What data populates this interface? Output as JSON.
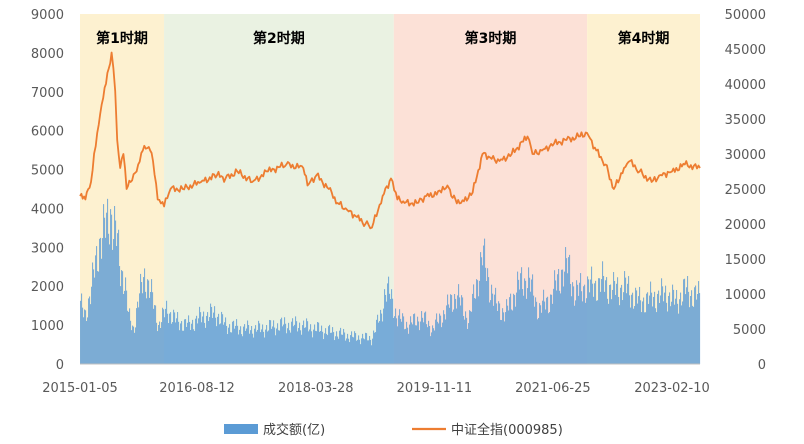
{
  "chart_data": {
    "type": "bar+line",
    "periods": [
      {
        "label": "第1时期",
        "start": "2015-01-05",
        "end": "2016-02-29",
        "color": "#fdefc8"
      },
      {
        "label": "第2时期",
        "start": "2016-02-29",
        "end": "2019-04-22",
        "color": "#e6f0dd"
      },
      {
        "label": "第3时期",
        "start": "2019-04-22",
        "end": "2021-12-13",
        "color": "#fbdcd0"
      },
      {
        "label": "第4时期",
        "start": "2021-12-13",
        "end": "2023-06-30",
        "color": "#fdefc8"
      }
    ],
    "x_ticks": [
      "2015-01-05",
      "2016-08-12",
      "2018-03-28",
      "2019-11-11",
      "2021-06-25",
      "2023-02-10"
    ],
    "x_range": [
      "2015-01-05",
      "2023-06-30"
    ],
    "y_left_ticks": [
      "0",
      "1000",
      "2000",
      "3000",
      "4000",
      "5000",
      "6000",
      "7000",
      "8000",
      "9000"
    ],
    "y_left_range": [
      0,
      9000
    ],
    "y_right_ticks": [
      "0",
      "5000",
      "10000",
      "15000",
      "20000",
      "25000",
      "30000",
      "35000",
      "40000",
      "45000",
      "50000"
    ],
    "y_right_range": [
      0,
      50000
    ],
    "series": [
      {
        "name": "成交额(亿)",
        "kind": "bar",
        "axis": "left",
        "color": "#5b9bd5",
        "points": [
          [
            "2015-01-05",
            1500
          ],
          [
            "2015-02-01",
            1300
          ],
          [
            "2015-03-01",
            1800
          ],
          [
            "2015-03-20",
            2500
          ],
          [
            "2015-04-10",
            3100
          ],
          [
            "2015-05-01",
            3300
          ],
          [
            "2015-05-20",
            3600
          ],
          [
            "2015-06-05",
            4000
          ],
          [
            "2015-06-20",
            3500
          ],
          [
            "2015-07-08",
            3200
          ],
          [
            "2015-07-25",
            2500
          ],
          [
            "2015-08-15",
            2200
          ],
          [
            "2015-09-05",
            1200
          ],
          [
            "2015-10-01",
            900
          ],
          [
            "2015-10-20",
            1500
          ],
          [
            "2015-11-10",
            2000
          ],
          [
            "2015-11-25",
            2300
          ],
          [
            "2015-12-15",
            2000
          ],
          [
            "2016-01-05",
            1600
          ],
          [
            "2016-02-01",
            1000
          ],
          [
            "2016-03-15",
            1400
          ],
          [
            "2016-05-01",
            1100
          ],
          [
            "2016-07-01",
            1000
          ],
          [
            "2016-09-01",
            1200
          ],
          [
            "2016-11-15",
            1300
          ],
          [
            "2017-01-01",
            1000
          ],
          [
            "2017-04-01",
            900
          ],
          [
            "2017-07-01",
            900
          ],
          [
            "2017-10-01",
            1000
          ],
          [
            "2018-01-01",
            1000
          ],
          [
            "2018-04-01",
            900
          ],
          [
            "2018-07-01",
            800
          ],
          [
            "2018-10-01",
            700
          ],
          [
            "2019-01-01",
            650
          ],
          [
            "2019-02-20",
            1300
          ],
          [
            "2019-03-10",
            1900
          ],
          [
            "2019-04-01",
            1800
          ],
          [
            "2019-05-10",
            1200
          ],
          [
            "2019-07-01",
            1000
          ],
          [
            "2019-09-10",
            1200
          ],
          [
            "2019-11-01",
            900
          ],
          [
            "2020-01-10",
            1400
          ],
          [
            "2020-03-01",
            1800
          ],
          [
            "2020-05-01",
            1100
          ],
          [
            "2020-07-08",
            2800
          ],
          [
            "2020-08-15",
            2000
          ],
          [
            "2020-09-15",
            1500
          ],
          [
            "2020-11-01",
            1300
          ],
          [
            "2021-01-01",
            2000
          ],
          [
            "2021-02-20",
            2200
          ],
          [
            "2021-04-15",
            1400
          ],
          [
            "2021-06-15",
            1700
          ],
          [
            "2021-08-10",
            2400
          ],
          [
            "2021-09-10",
            2500
          ],
          [
            "2021-10-15",
            1800
          ],
          [
            "2021-12-01",
            2000
          ],
          [
            "2022-01-10",
            2000
          ],
          [
            "2022-03-01",
            2100
          ],
          [
            "2022-04-25",
            1900
          ],
          [
            "2022-06-15",
            2000
          ],
          [
            "2022-09-01",
            1600
          ],
          [
            "2022-11-01",
            1700
          ],
          [
            "2023-01-15",
            1800
          ],
          [
            "2023-03-01",
            1600
          ],
          [
            "2023-04-15",
            1900
          ],
          [
            "2023-06-30",
            1700
          ]
        ]
      },
      {
        "name": "中证全指(000985)",
        "kind": "line",
        "axis": "right",
        "color": "#ed7d31",
        "points": [
          [
            "2015-01-05",
            24000
          ],
          [
            "2015-02-01",
            23500
          ],
          [
            "2015-03-01",
            26000
          ],
          [
            "2015-04-01",
            33000
          ],
          [
            "2015-05-01",
            38000
          ],
          [
            "2015-06-12",
            44500
          ],
          [
            "2015-06-30",
            39000
          ],
          [
            "2015-07-10",
            32000
          ],
          [
            "2015-07-25",
            28000
          ],
          [
            "2015-08-10",
            30000
          ],
          [
            "2015-08-26",
            25000
          ],
          [
            "2015-09-15",
            26000
          ],
          [
            "2015-10-15",
            27500
          ],
          [
            "2015-11-15",
            30500
          ],
          [
            "2015-12-15",
            31000
          ],
          [
            "2016-01-05",
            29000
          ],
          [
            "2016-01-28",
            23500
          ],
          [
            "2016-02-29",
            22500
          ],
          [
            "2016-04-01",
            25000
          ],
          [
            "2016-06-01",
            25000
          ],
          [
            "2016-09-01",
            26000
          ],
          [
            "2016-11-20",
            27000
          ],
          [
            "2017-01-01",
            26500
          ],
          [
            "2017-03-01",
            27500
          ],
          [
            "2017-05-15",
            26000
          ],
          [
            "2017-08-01",
            27500
          ],
          [
            "2017-11-01",
            28500
          ],
          [
            "2018-01-25",
            28000
          ],
          [
            "2018-02-15",
            25500
          ],
          [
            "2018-04-01",
            27000
          ],
          [
            "2018-06-01",
            25000
          ],
          [
            "2018-07-15",
            23000
          ],
          [
            "2018-09-01",
            22000
          ],
          [
            "2018-10-20",
            21000
          ],
          [
            "2018-12-01",
            20000
          ],
          [
            "2019-01-03",
            19500
          ],
          [
            "2019-02-25",
            24000
          ],
          [
            "2019-04-08",
            26500
          ],
          [
            "2019-05-10",
            23500
          ],
          [
            "2019-06-15",
            23000
          ],
          [
            "2019-08-15",
            23000
          ],
          [
            "2019-10-01",
            24000
          ],
          [
            "2019-12-15",
            24500
          ],
          [
            "2020-01-15",
            25500
          ],
          [
            "2020-02-03",
            24000
          ],
          [
            "2020-03-23",
            23000
          ],
          [
            "2020-05-20",
            24500
          ],
          [
            "2020-07-08",
            30000
          ],
          [
            "2020-08-15",
            29500
          ],
          [
            "2020-10-01",
            29000
          ],
          [
            "2020-12-01",
            30000
          ],
          [
            "2021-02-18",
            32500
          ],
          [
            "2021-03-15",
            30000
          ],
          [
            "2021-05-01",
            30500
          ],
          [
            "2021-07-01",
            31500
          ],
          [
            "2021-09-01",
            32000
          ],
          [
            "2021-11-01",
            32500
          ],
          [
            "2021-12-13",
            33000
          ],
          [
            "2022-01-28",
            30500
          ],
          [
            "2022-03-15",
            28500
          ],
          [
            "2022-04-26",
            25000
          ],
          [
            "2022-06-15",
            28000
          ],
          [
            "2022-07-15",
            29000
          ],
          [
            "2022-09-01",
            27500
          ],
          [
            "2022-10-31",
            26000
          ],
          [
            "2022-12-15",
            27000
          ],
          [
            "2023-02-10",
            27500
          ],
          [
            "2023-04-15",
            28500
          ],
          [
            "2023-06-30",
            28000
          ]
        ]
      }
    ],
    "legend_position": "bottom",
    "grid": false
  }
}
